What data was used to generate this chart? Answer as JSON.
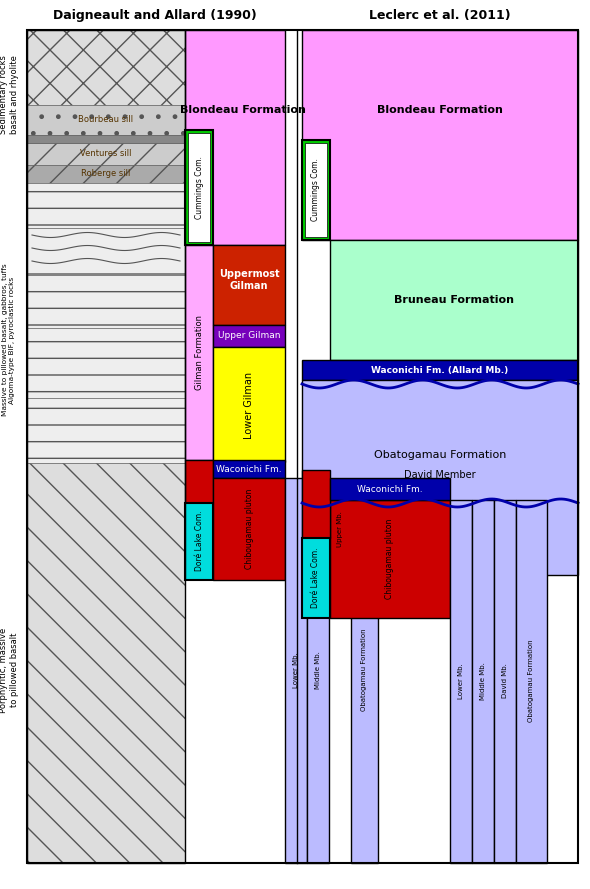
{
  "title_left": "Daigneault and Allard (1990)",
  "title_right": "Leclerc et al. (2011)",
  "colors": {
    "pink": "#FF99FF",
    "light_pink": "#FFAAFF",
    "green": "#00CC00",
    "white": "#FFFFFF",
    "red": "#CC0000",
    "orange_red": "#CC2200",
    "purple": "#7700BB",
    "yellow": "#FFFF00",
    "cyan": "#00DDDD",
    "blue_dark": "#0000AA",
    "light_blue": "#BBBBFF",
    "mint": "#AAFFCC",
    "black": "#000000",
    "gray_litho": "#E8E8E8",
    "gray_dark": "#999999"
  },
  "labels": {
    "sed_rocks": "Sedimentary rocks\nbasalt and rhyolite",
    "massive": "Massive to pillowed basalt, gabbros, tuffs\nAlgoma-type BIF, pyroclastic rocks",
    "porphyritic": "Porphyritic, massive\nto pillowed basalt",
    "blondeau": "Blondeau Formation",
    "cummings": "Cummings Com.",
    "gilman_fm": "Gilman Formation",
    "uppermost": "Uppermost\nGilman",
    "upper_gilman": "Upper Gilman",
    "lower_gilman": "Lower Gilman",
    "waconichi": "Waconichi Fm.",
    "waconichi_allard": "Waconichi Fm. (Allard Mb.)",
    "dore_lake": "Doré Lake Com.",
    "chibougamau": "Chibougamau pluton",
    "obatogamau": "Obatogamau Formation",
    "bruneau": "Bruneau Formation",
    "david_mb_label": "David Member",
    "lower_mb": "Lower Mb.",
    "middle_mb": "Middle Mb.",
    "upper_mb": "Upper Mb.",
    "david_mb": "David Mb.",
    "bourbeau": "Bourbeau sill",
    "ventures": "Ventures sill",
    "roberge": "Roberge sill"
  }
}
